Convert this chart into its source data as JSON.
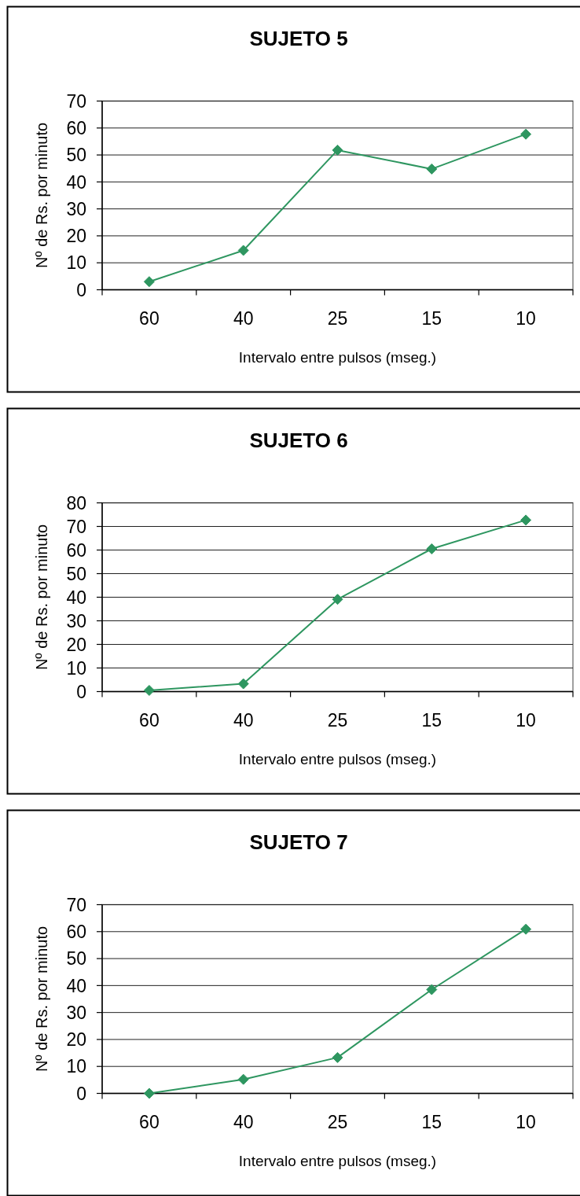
{
  "chart_data": [
    {
      "type": "line",
      "title": "SUJETO 5",
      "xlabel": "Intervalo entre pulsos (mseg.)",
      "ylabel": "Nº de Rs. por minuto",
      "categories": [
        "60",
        "40",
        "25",
        "15",
        "10"
      ],
      "series": [
        {
          "color": "#2e9660",
          "values": [
            3,
            14.6,
            51.8,
            44.8,
            57.7
          ]
        }
      ],
      "ylim": [
        0,
        70
      ],
      "yticks": [
        0,
        10,
        20,
        30,
        40,
        50,
        60,
        70
      ],
      "grid": "y",
      "marker": "diamond"
    },
    {
      "type": "line",
      "title": "SUJETO 6",
      "xlabel": "Intervalo entre pulsos (mseg.)",
      "ylabel": "Nº de Rs. por minuto",
      "categories": [
        "60",
        "40",
        "25",
        "15",
        "10"
      ],
      "series": [
        {
          "color": "#2e9660",
          "values": [
            0.5,
            3.3,
            39.1,
            60.5,
            72.7
          ]
        }
      ],
      "ylim": [
        0,
        80
      ],
      "yticks": [
        0,
        10,
        20,
        30,
        40,
        50,
        60,
        70,
        80
      ],
      "grid": "y",
      "marker": "diamond"
    },
    {
      "type": "line",
      "title": "SUJETO 7",
      "xlabel": "Intervalo entre pulsos (mseg.)",
      "ylabel": "Nº de Rs. por minuto",
      "categories": [
        "60",
        "40",
        "25",
        "15",
        "10"
      ],
      "series": [
        {
          "color": "#2e9660",
          "values": [
            0,
            5.2,
            13.3,
            38.5,
            60.9
          ]
        }
      ],
      "ylim": [
        0,
        70
      ],
      "yticks": [
        0,
        10,
        20,
        30,
        40,
        50,
        60,
        70
      ],
      "grid": "y",
      "marker": "diamond"
    }
  ]
}
